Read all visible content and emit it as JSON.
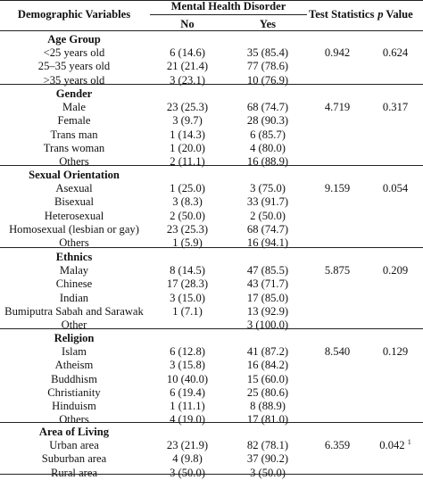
{
  "header": {
    "demographic_variables": "Demographic Variables",
    "mental_health_disorder": "Mental Health Disorder",
    "no": "No",
    "yes": "Yes",
    "test_statistics": "Test Statistics",
    "p_italic": "p",
    "value": " Value"
  },
  "groups": [
    {
      "title": "Age Group",
      "test_statistic": "0.942",
      "p_value": "0.624",
      "rows": [
        {
          "label": "<25 years old",
          "no": "6 (14.6)",
          "yes": "35 (85.4)"
        },
        {
          "label": "25–35 years old",
          "no": "21 (21.4)",
          "yes": "77 (78.6)"
        },
        {
          "label": ">35 years old",
          "no": "3 (23.1)",
          "yes": "10 (76.9)"
        }
      ]
    },
    {
      "title": "Gender",
      "test_statistic": "4.719",
      "p_value": "0.317",
      "rows": [
        {
          "label": "Male",
          "no": "23 (25.3)",
          "yes": "68 (74.7)"
        },
        {
          "label": "Female",
          "no": "3 (9.7)",
          "yes": "28 (90.3)"
        },
        {
          "label": "Trans man",
          "no": "1 (14.3)",
          "yes": "6 (85.7)"
        },
        {
          "label": "Trans woman",
          "no": "1 (20.0)",
          "yes": "4 (80.0)"
        },
        {
          "label": "Others",
          "no": "2 (11.1)",
          "yes": "16 (88.9)"
        }
      ]
    },
    {
      "title": "Sexual Orientation",
      "test_statistic": "9.159",
      "p_value": "0.054",
      "rows": [
        {
          "label": "Asexual",
          "no": "1 (25.0)",
          "yes": "3 (75.0)"
        },
        {
          "label": "Bisexual",
          "no": "3 (8.3)",
          "yes": "33 (91.7)"
        },
        {
          "label": "Heterosexual",
          "no": "2 (50.0)",
          "yes": "2 (50.0)"
        },
        {
          "label": "Homosexual (lesbian or gay)",
          "no": "23 (25.3)",
          "yes": "68 (74.7)"
        },
        {
          "label": "Others",
          "no": "1 (5.9)",
          "yes": "16 (94.1)"
        }
      ]
    },
    {
      "title": "Ethnics",
      "test_statistic": "5.875",
      "p_value": "0.209",
      "rows": [
        {
          "label": "Malay",
          "no": "8 (14.5)",
          "yes": "47 (85.5)"
        },
        {
          "label": "Chinese",
          "no": "17 (28.3)",
          "yes": "43 (71.7)"
        },
        {
          "label": "Indian",
          "no": "3 (15.0)",
          "yes": "17 (85.0)"
        },
        {
          "label": "Bumiputra Sabah and Sarawak",
          "no": "1 (7.1)",
          "yes": "13 (92.9)"
        },
        {
          "label": "Other",
          "no": "",
          "yes": "3 (100.0)"
        }
      ]
    },
    {
      "title": "Religion",
      "test_statistic": "8.540",
      "p_value": "0.129",
      "rows": [
        {
          "label": "Islam",
          "no": "6 (12.8)",
          "yes": "41 (87.2)"
        },
        {
          "label": "Atheism",
          "no": "3 (15.8)",
          "yes": "16 (84.2)"
        },
        {
          "label": "Buddhism",
          "no": "10 (40.0)",
          "yes": "15 (60.0)"
        },
        {
          "label": "Christianity",
          "no": "6 (19.4)",
          "yes": "25 (80.6)"
        },
        {
          "label": "Hinduism",
          "no": "1 (11.1)",
          "yes": "8 (88.9)"
        },
        {
          "label": "Others",
          "no": "4 (19.0)",
          "yes": "17 (81.0)"
        }
      ]
    },
    {
      "title": "Area of Living",
      "test_statistic": "6.359",
      "p_value": "0.042",
      "p_value_sup": "1",
      "rows": [
        {
          "label": "Urban area",
          "no": "23 (21.9)",
          "yes": "82 (78.1)"
        },
        {
          "label": "Suburban area",
          "no": "4 (9.8)",
          "yes": "37 (90.2)"
        },
        {
          "label": "Rural area",
          "no": "3 (50.0)",
          "yes": "3 (50.0)"
        }
      ]
    }
  ]
}
